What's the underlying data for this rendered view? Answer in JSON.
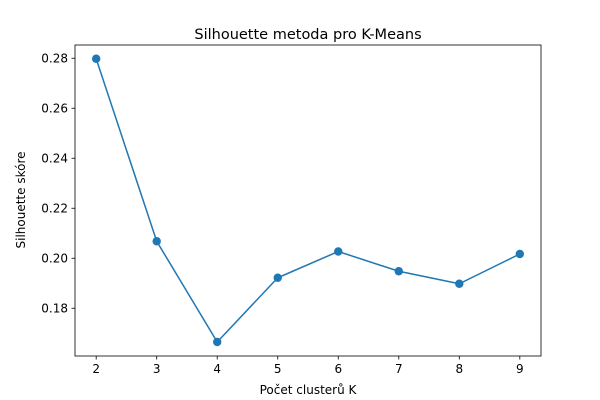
{
  "chart_data": {
    "type": "line",
    "title": "Silhouette metoda pro K-Means",
    "xlabel": "Počet clusterů K",
    "ylabel": "Silhouette skóre",
    "x": [
      2,
      3,
      4,
      5,
      6,
      7,
      8,
      9
    ],
    "series": [
      {
        "values": [
          0.2798,
          0.2068,
          0.1665,
          0.1922,
          0.2027,
          0.1948,
          0.1898,
          0.2017
        ],
        "color": "#1f77b4",
        "marker": "circle"
      }
    ],
    "xlim": [
      1.65,
      9.35
    ],
    "ylim": [
      0.1609,
      0.2853
    ],
    "xticks": [
      2,
      3,
      4,
      5,
      6,
      7,
      8,
      9
    ],
    "yticks": [
      "0.18",
      "0.20",
      "0.22",
      "0.24",
      "0.26",
      "0.28"
    ],
    "grid": false,
    "legend": "none"
  }
}
